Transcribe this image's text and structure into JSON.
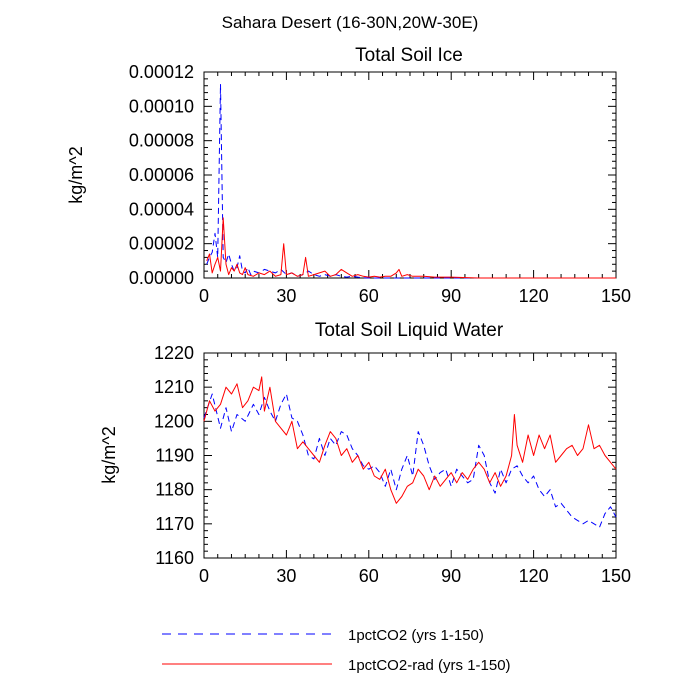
{
  "figure": {
    "main_title": "Sahara Desert (16-30N,20W-30E)"
  },
  "colors": {
    "series_a": "#0000ff",
    "series_b": "#ff0000",
    "axes": "#000000"
  },
  "legend": {
    "placement": "bottom",
    "items": [
      {
        "label": "1pctCO2 (yrs 1-150)",
        "style": "dashed"
      },
      {
        "label": "1pctCO2-rad (yrs 1-150)",
        "style": "solid"
      }
    ]
  },
  "chart_data": [
    {
      "type": "line",
      "title": "Total Soil Ice",
      "xlabel": "",
      "ylabel": "kg/m^2",
      "xlim": [
        0,
        150
      ],
      "ylim": [
        0,
        0.00012
      ],
      "xticks": [
        0,
        30,
        60,
        90,
        120,
        150
      ],
      "xtick_labels": [
        "0",
        "30",
        "60",
        "90",
        "120",
        "150"
      ],
      "yticks": [
        0,
        2e-05,
        4e-05,
        6e-05,
        8e-05,
        0.0001,
        0.00012
      ],
      "ytick_labels": [
        "0.00000",
        "0.00002",
        "0.00004",
        "0.00006",
        "0.00008",
        "0.00010",
        "0.00012"
      ],
      "grid": false,
      "series": [
        {
          "label": "1pctCO2 (yrs 1-150)",
          "style": "dashed",
          "x": [
            1,
            2,
            3,
            4,
            5,
            6,
            7,
            8,
            9,
            10,
            11,
            12,
            13,
            14,
            15,
            16,
            17,
            18,
            20,
            22,
            24,
            26,
            28,
            30,
            32,
            34,
            36,
            38,
            40,
            42,
            44,
            46,
            48,
            50,
            52,
            54,
            56,
            58,
            60,
            70,
            80,
            90,
            100,
            110,
            120,
            130,
            140,
            150
          ],
          "y": [
            8e-06,
            1.2e-05,
            1.5e-05,
            2.6e-05,
            1.2e-05,
            0.000113,
            1.2e-05,
            9e-06,
            1.4e-05,
            8e-06,
            4e-06,
            6e-06,
            1.3e-05,
            4e-06,
            3e-06,
            6e-06,
            2e-06,
            4e-06,
            3e-06,
            5e-06,
            4e-06,
            3e-06,
            5e-06,
            2e-06,
            3e-06,
            1e-06,
            2e-06,
            4e-06,
            2e-06,
            1e-06,
            2e-06,
            1e-06,
            2e-06,
            1e-06,
            5e-07,
            1e-06,
            5e-07,
            2e-07,
            0,
            0,
            0,
            0,
            0,
            0,
            0,
            0,
            0,
            0
          ]
        },
        {
          "label": "1pctCO2-rad (yrs 1-150)",
          "style": "solid",
          "x": [
            1,
            2,
            3,
            4,
            5,
            6,
            7,
            8,
            9,
            10,
            11,
            12,
            13,
            14,
            15,
            16,
            18,
            20,
            22,
            24,
            26,
            28,
            29,
            30,
            32,
            34,
            36,
            37,
            38,
            40,
            42,
            44,
            46,
            48,
            50,
            52,
            54,
            56,
            58,
            60,
            62,
            64,
            66,
            68,
            70,
            71,
            72,
            74,
            76,
            80,
            84,
            90,
            100,
            120,
            150
          ],
          "y": [
            1e-05,
            1.4e-05,
            3e-06,
            8e-06,
            1.2e-05,
            4e-06,
            3.5e-05,
            8e-06,
            2e-06,
            6e-06,
            4e-06,
            8e-06,
            3e-06,
            2e-06,
            6e-06,
            2e-06,
            1e-06,
            3e-06,
            2e-06,
            4e-06,
            1e-06,
            2e-06,
            2e-05,
            2e-06,
            3e-06,
            1e-06,
            2e-06,
            1.2e-05,
            1e-06,
            2e-06,
            3e-06,
            4e-06,
            1e-06,
            2e-06,
            5e-06,
            3e-06,
            1e-06,
            2e-06,
            1e-06,
            5e-07,
            1e-06,
            5e-07,
            1e-06,
            1e-06,
            3e-06,
            5e-06,
            1e-06,
            2e-06,
            1e-06,
            1e-06,
            5e-07,
            5e-07,
            0,
            0,
            0
          ]
        }
      ]
    },
    {
      "type": "line",
      "title": "Total Soil Liquid Water",
      "xlabel": "",
      "ylabel": "kg/m^2",
      "xlim": [
        0,
        150
      ],
      "ylim": [
        1160,
        1220
      ],
      "xticks": [
        0,
        30,
        60,
        90,
        120,
        150
      ],
      "xtick_labels": [
        "0",
        "30",
        "60",
        "90",
        "120",
        "150"
      ],
      "yticks": [
        1160,
        1170,
        1180,
        1190,
        1200,
        1210,
        1220
      ],
      "ytick_labels": [
        "1160",
        "1170",
        "1180",
        "1190",
        "1200",
        "1210",
        "1220"
      ],
      "grid": false,
      "series": [
        {
          "label": "1pctCO2 (yrs 1-150)",
          "style": "dashed",
          "x": [
            0,
            3,
            6,
            8,
            10,
            12,
            15,
            18,
            20,
            22,
            24,
            26,
            28,
            30,
            32,
            34,
            36,
            38,
            40,
            42,
            44,
            46,
            48,
            50,
            52,
            54,
            56,
            58,
            60,
            62,
            64,
            66,
            68,
            70,
            72,
            74,
            76,
            78,
            80,
            82,
            84,
            86,
            88,
            90,
            92,
            94,
            96,
            98,
            100,
            102,
            104,
            106,
            108,
            110,
            112,
            114,
            116,
            118,
            120,
            122,
            124,
            126,
            128,
            130,
            132,
            134,
            136,
            138,
            140,
            142,
            144,
            146,
            148,
            150
          ],
          "y": [
            1201,
            1208,
            1198,
            1204,
            1197,
            1202,
            1200,
            1205,
            1202,
            1207,
            1203,
            1200,
            1205,
            1208,
            1201,
            1200,
            1196,
            1190,
            1189,
            1195,
            1190,
            1195,
            1193,
            1197,
            1196,
            1192,
            1190,
            1187,
            1186,
            1187,
            1185,
            1181,
            1186,
            1180,
            1186,
            1190,
            1184,
            1197,
            1193,
            1187,
            1183,
            1185,
            1186,
            1181,
            1186,
            1184,
            1182,
            1183,
            1193,
            1190,
            1182,
            1179,
            1186,
            1182,
            1186,
            1187,
            1184,
            1182,
            1184,
            1180,
            1178,
            1180,
            1175,
            1176,
            1174,
            1172,
            1171,
            1170,
            1171,
            1170,
            1169,
            1173,
            1175,
            1172
          ]
        },
        {
          "label": "1pctCO2-rad (yrs 1-150)",
          "style": "solid",
          "x": [
            0,
            2,
            4,
            6,
            8,
            10,
            12,
            14,
            16,
            18,
            20,
            21,
            22,
            24,
            26,
            28,
            30,
            32,
            34,
            36,
            38,
            40,
            42,
            44,
            46,
            48,
            50,
            52,
            54,
            56,
            58,
            60,
            62,
            64,
            66,
            68,
            70,
            72,
            74,
            76,
            78,
            80,
            82,
            84,
            86,
            88,
            90,
            92,
            94,
            96,
            98,
            100,
            102,
            104,
            106,
            108,
            110,
            112,
            113,
            114,
            116,
            118,
            120,
            122,
            124,
            126,
            128,
            130,
            132,
            134,
            136,
            138,
            140,
            142,
            144,
            146,
            148,
            150
          ],
          "y": [
            1200,
            1206,
            1203,
            1205,
            1210,
            1208,
            1211,
            1204,
            1206,
            1210,
            1209,
            1213,
            1203,
            1210,
            1200,
            1198,
            1196,
            1200,
            1192,
            1194,
            1192,
            1190,
            1188,
            1193,
            1197,
            1195,
            1190,
            1192,
            1188,
            1190,
            1186,
            1188,
            1184,
            1183,
            1186,
            1180,
            1176,
            1178,
            1181,
            1182,
            1186,
            1184,
            1180,
            1184,
            1181,
            1183,
            1185,
            1182,
            1185,
            1183,
            1186,
            1188,
            1186,
            1182,
            1185,
            1181,
            1184,
            1190,
            1202,
            1193,
            1188,
            1196,
            1190,
            1196,
            1192,
            1196,
            1188,
            1190,
            1192,
            1193,
            1190,
            1192,
            1199,
            1192,
            1193,
            1190,
            1188,
            1186
          ]
        }
      ]
    }
  ]
}
